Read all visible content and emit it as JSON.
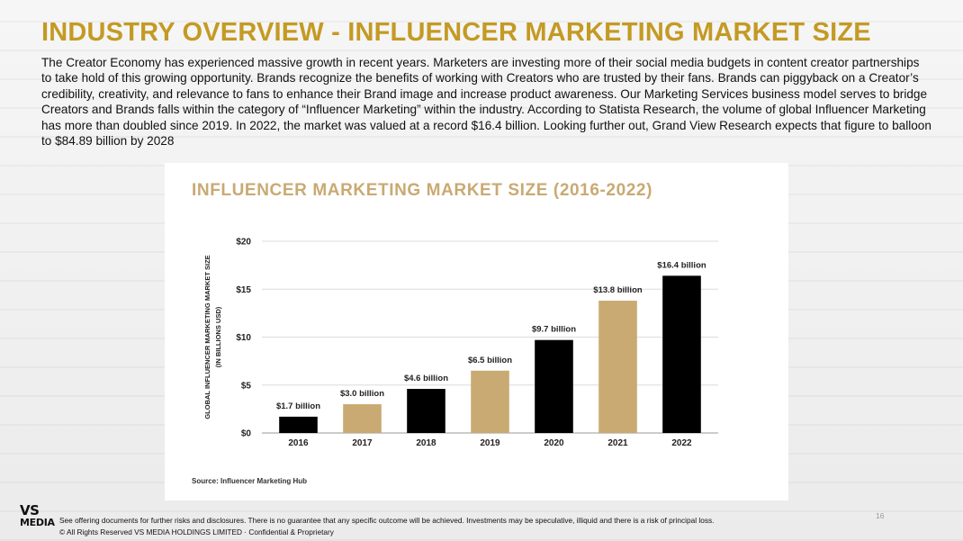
{
  "slide": {
    "title": "INDUSTRY OVERVIEW - INFLUENCER MARKETING MARKET SIZE",
    "intro": "The Creator Economy has experienced massive growth in recent years. Marketers are investing more of their social media budgets in content creator partnerships to take hold of this growing opportunity. Brands recognize the benefits of working with Creators who are trusted by their fans. Brands can piggyback on a Creator’s credibility, creativity, and relevance to fans to enhance their Brand image and increase product awareness. Our Marketing Services business model serves to bridge Creators and Brands falls within the category of “Influencer Marketing” within the industry. According to Statista Research, the volume of global Influencer Marketing has more than doubled since 2019. In 2022, the market was valued at a record $16.4 billion. Looking further out, Grand View Research expects that figure to balloon to $84.89 billion by 2028"
  },
  "chart_data": {
    "type": "bar",
    "title": "INFLUENCER MARKETING MARKET SIZE (2016-2022)",
    "ylabel_line1": "GLOBAL INFLUENCER MARKETING MARKET SIZE",
    "ylabel_line2": "(IN BILLIONS USD)",
    "categories": [
      "2016",
      "2017",
      "2018",
      "2019",
      "2020",
      "2021",
      "2022"
    ],
    "values": [
      1.7,
      3.0,
      4.6,
      6.5,
      9.7,
      13.8,
      16.4
    ],
    "data_labels": [
      "$1.7 billion",
      "$3.0 billion",
      "$4.6 billion",
      "$6.5 billion",
      "$9.7 billion",
      "$13.8 billion",
      "$16.4 billion"
    ],
    "bar_colors": [
      "#000000",
      "#c9aa73",
      "#000000",
      "#c9aa73",
      "#000000",
      "#c9aa73",
      "#000000"
    ],
    "yticks": [
      0,
      5,
      10,
      15,
      20
    ],
    "ytick_labels": [
      "$0",
      "$5",
      "$10",
      "$15",
      "$20"
    ],
    "ylim": [
      0,
      20
    ],
    "grid": true,
    "source": "Source: Influencer Marketing Hub"
  },
  "footer": {
    "logo_line1": "VS",
    "logo_line2": "MEDIA",
    "disclaimer": "See offering documents for further risks and disclosures.  There is no guarantee that any specific outcome will be achieved.   Investments may be speculative, illiquid and there is a risk of principal loss.",
    "copyright": "© All Rights Reserved VS MEDIA HOLDINGS LIMITED · Confidential & Proprietary",
    "page_number": "16"
  },
  "colors": {
    "title_gold": "#c49a24",
    "chart_gold": "#c9aa73",
    "bar_black": "#000000"
  }
}
